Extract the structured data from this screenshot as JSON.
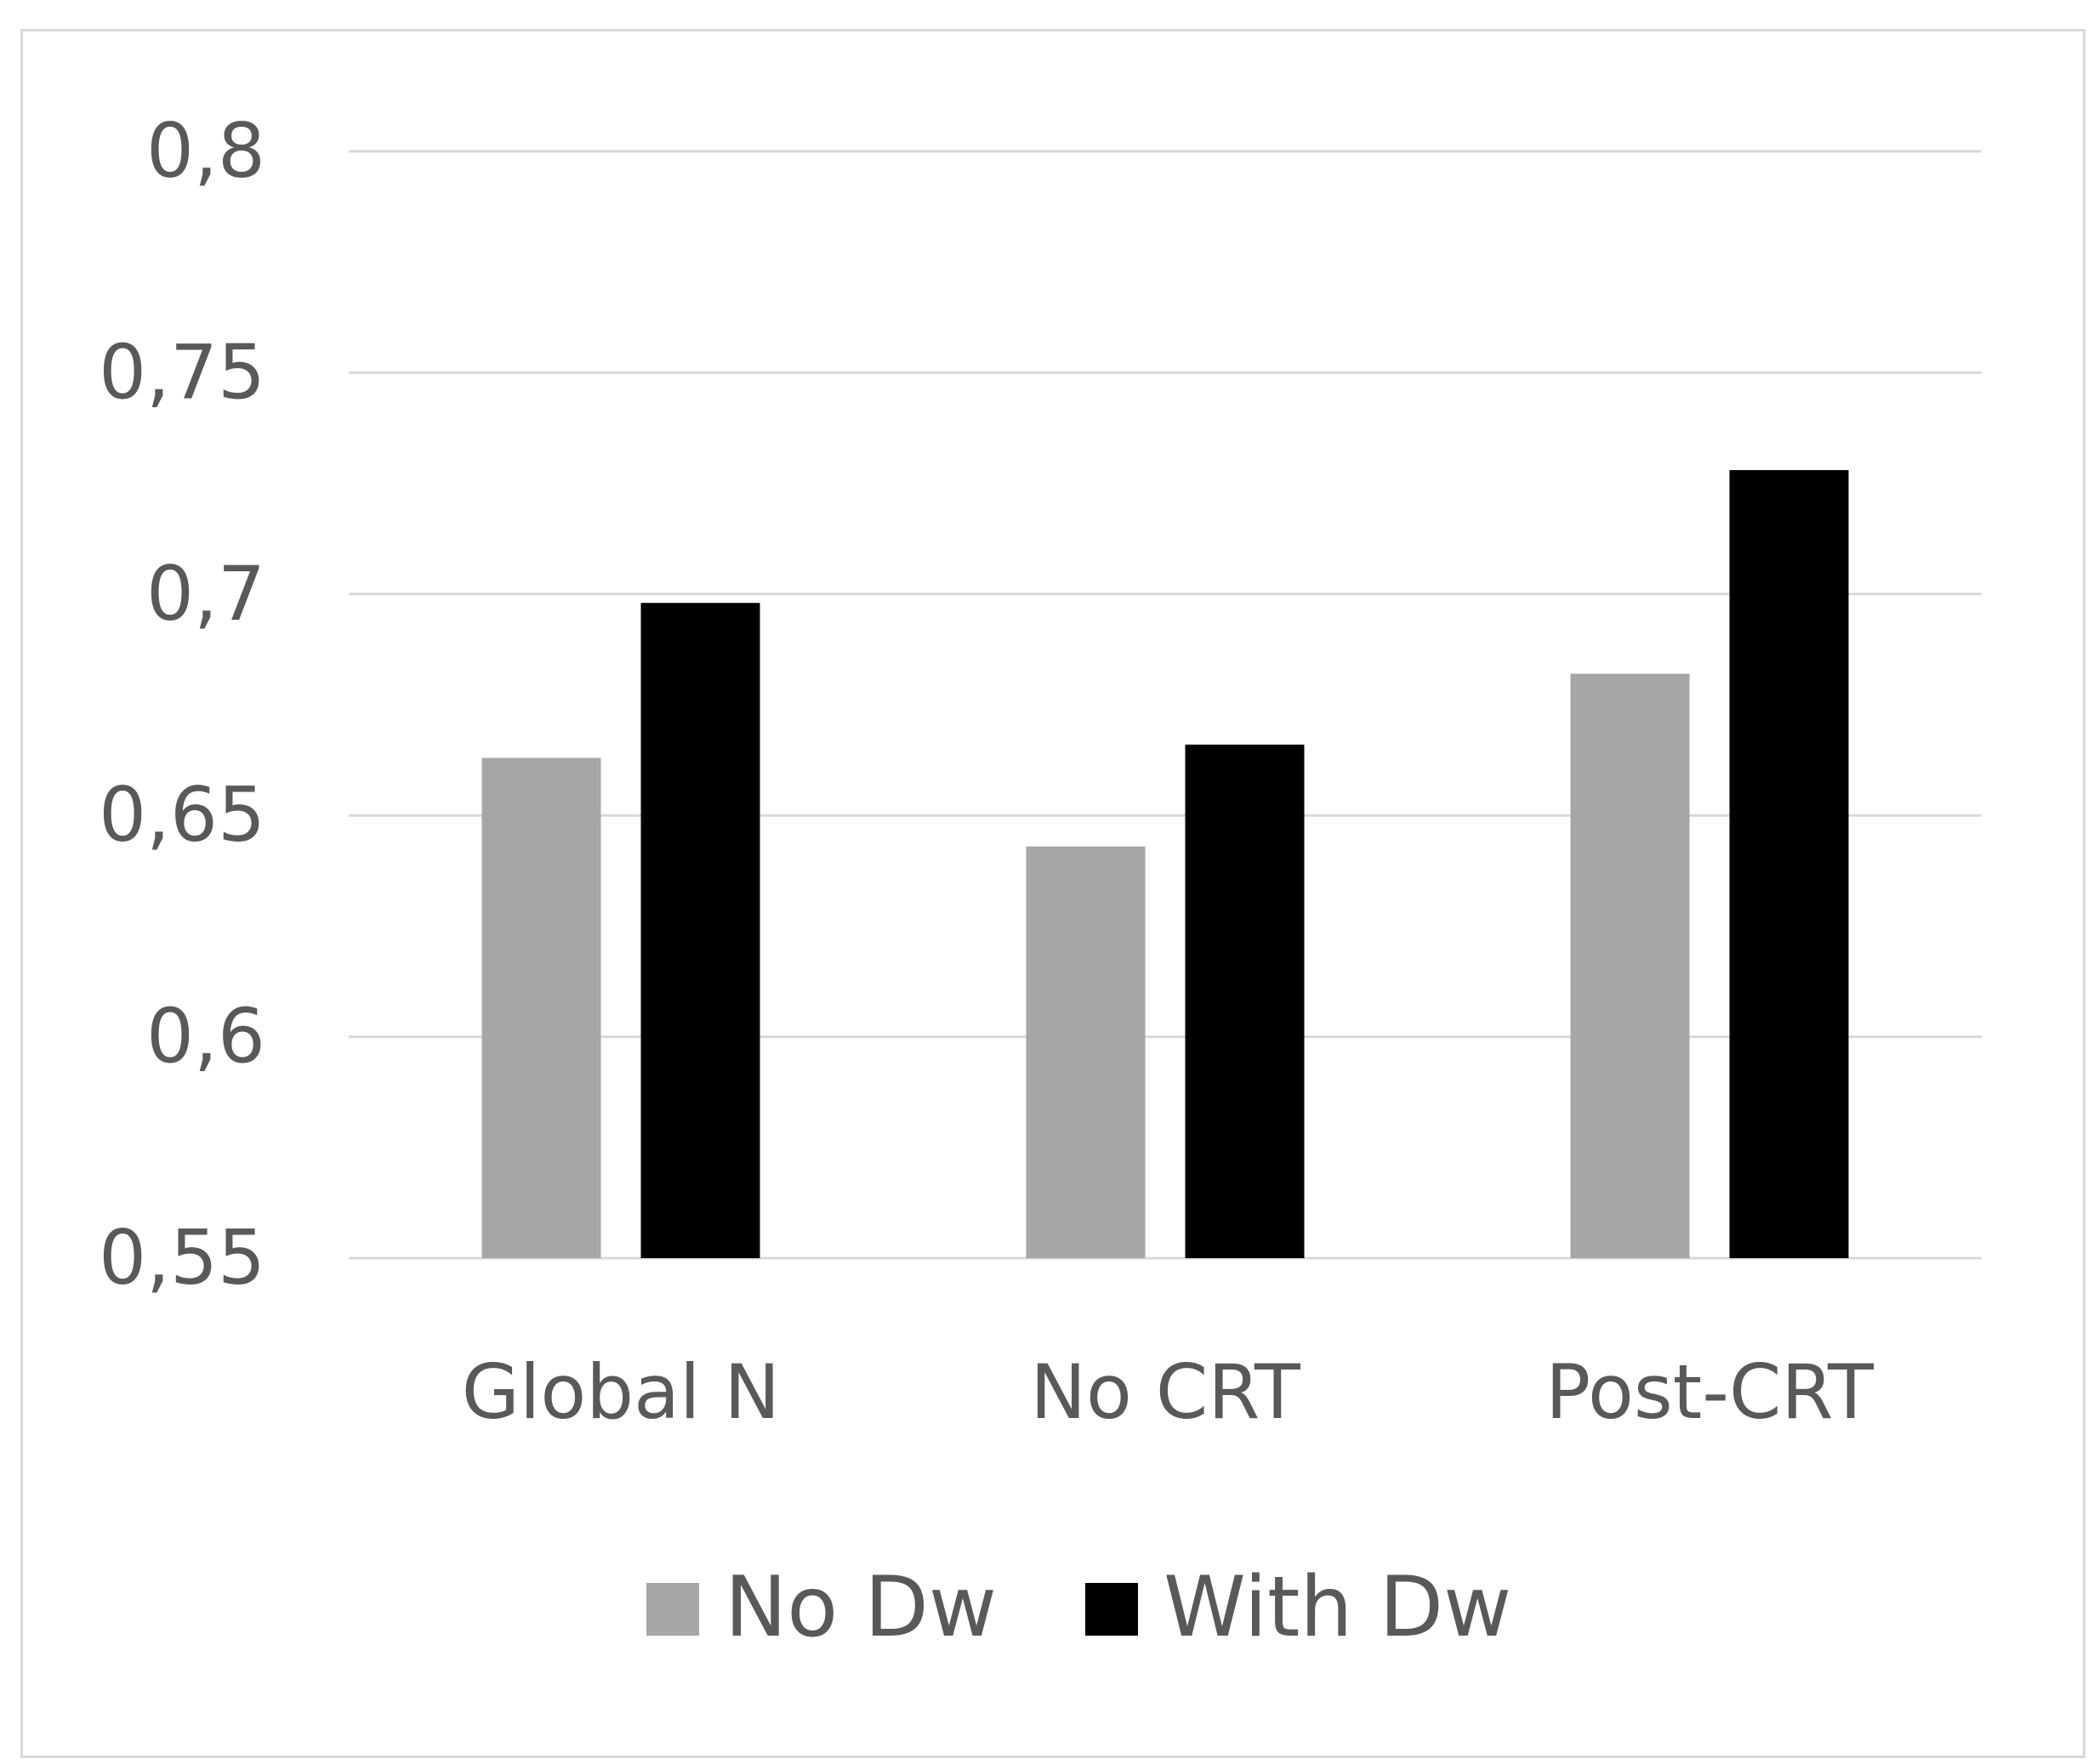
{
  "chart_data": {
    "type": "bar",
    "categories": [
      "Global N",
      "No CRT",
      "Post-CRT"
    ],
    "series": [
      {
        "name": "No Dw",
        "values": [
          0.663,
          0.643,
          0.682
        ],
        "color": "#a6a6a6"
      },
      {
        "name": "With Dw",
        "values": [
          0.698,
          0.666,
          0.728
        ],
        "color": "#000000"
      }
    ],
    "yticks": [
      "0,55",
      "0,6",
      "0,65",
      "0,7",
      "0,75",
      "0,8"
    ],
    "ylim": [
      0.55,
      0.8
    ],
    "grid": true,
    "legend_position": "bottom",
    "gridline_color": "#d9d9d9",
    "text_color": "#595959"
  }
}
